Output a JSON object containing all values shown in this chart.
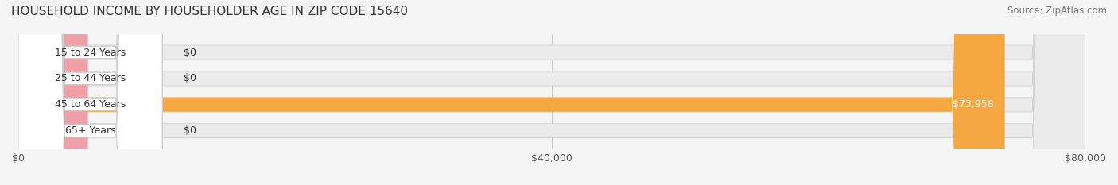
{
  "title": "HOUSEHOLD INCOME BY HOUSEHOLDER AGE IN ZIP CODE 15640",
  "source": "Source: ZipAtlas.com",
  "categories": [
    "15 to 24 Years",
    "25 to 44 Years",
    "45 to 64 Years",
    "65+ Years"
  ],
  "values": [
    0,
    0,
    73958,
    0
  ],
  "max_value": 80000,
  "bar_colors": [
    "#9b9fd4",
    "#f0829a",
    "#f5a742",
    "#f0a0a8"
  ],
  "label_colors": [
    "#9b9fd4",
    "#f0829a",
    "#f5a742",
    "#f0a0a8"
  ],
  "bar_label_colors": [
    "#333333",
    "#333333",
    "#ffffff",
    "#333333"
  ],
  "value_labels": [
    "$0",
    "$0",
    "$73,958",
    "$0"
  ],
  "xtick_labels": [
    "$0",
    "$40,000",
    "$80,000"
  ],
  "xtick_values": [
    0,
    40000,
    80000
  ],
  "background_color": "#f5f5f5",
  "bar_bg_color": "#ebebeb",
  "title_fontsize": 11,
  "source_fontsize": 8.5,
  "label_fontsize": 9,
  "value_fontsize": 9,
  "tick_fontsize": 9
}
